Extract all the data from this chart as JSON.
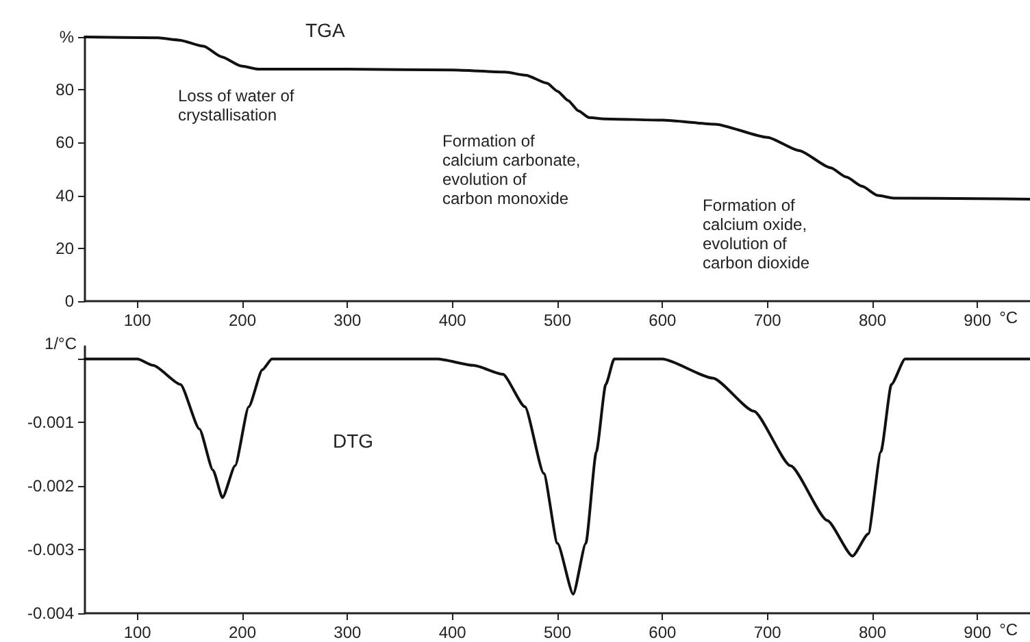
{
  "chart_data": [
    {
      "type": "line",
      "title": "TGA",
      "xlabel": "°C",
      "xlim": [
        50,
        950
      ],
      "xticks": [
        100,
        200,
        300,
        400,
        500,
        600,
        700,
        800,
        900
      ],
      "ylim": [
        0,
        100
      ],
      "yticks": [
        0,
        20,
        40,
        60,
        80,
        {
          "value": 100,
          "label": "%"
        }
      ],
      "grid": false,
      "marker": "none",
      "line_style": "solid",
      "series": [
        {
          "color": "#111111",
          "x": [
            50,
            120,
            140,
            163,
            180,
            199,
            215,
            300,
            400,
            450,
            470,
            490,
            500,
            510,
            520,
            530,
            545,
            600,
            650,
            700,
            730,
            760,
            775,
            790,
            805,
            820,
            900,
            950
          ],
          "values": [
            100,
            99.7,
            98.8,
            96.5,
            92.5,
            89,
            87.8,
            87.8,
            87.5,
            86.7,
            85.5,
            82.5,
            79.5,
            76,
            72,
            69.5,
            69,
            68.5,
            67,
            62,
            57,
            50.5,
            47,
            43.5,
            40,
            39,
            38.8,
            38.6
          ]
        }
      ],
      "annotations": [
        "Loss of water of\ncrystallisation",
        "Formation of\ncalcium carbonate,\nevolution of\ncarbon monoxide",
        "Formation of\ncalcium oxide,\nevolution of\ncarbon dioxide"
      ]
    },
    {
      "type": "line",
      "title": "DTG",
      "xlabel": "°C",
      "ylabel": "1/°C",
      "xlim": [
        50,
        950
      ],
      "xticks": [
        100,
        200,
        300,
        400,
        500,
        600,
        700,
        800,
        900
      ],
      "ylim": [
        -0.004,
        0.0002
      ],
      "yticks": [
        -0.004,
        -0.003,
        -0.002,
        -0.001,
        {
          "value": 0,
          "label": null
        }
      ],
      "grid": false,
      "marker": "none",
      "line_style": "solid",
      "series": [
        {
          "color": "#111111",
          "x": [
            50,
            100,
            115,
            141,
            159,
            172,
            181,
            193,
            206,
            219,
            228,
            300,
            386,
            420,
            448,
            469,
            487,
            500,
            515,
            527,
            537,
            546,
            554,
            600,
            648,
            687,
            722,
            757,
            781,
            796,
            808,
            818,
            831,
            950
          ],
          "values": [
            0,
            0,
            -0.0001,
            -0.0004,
            -0.0011,
            -0.00175,
            -0.00218,
            -0.00168,
            -0.00075,
            -0.00017,
            0,
            0,
            0,
            -0.0001,
            -0.00024,
            -0.00075,
            -0.0018,
            -0.0029,
            -0.0037,
            -0.0029,
            -0.00146,
            -0.0004,
            0,
            0,
            -0.0003,
            -0.00082,
            -0.00168,
            -0.00254,
            -0.0031,
            -0.00275,
            -0.00146,
            -0.0004,
            0,
            0
          ]
        }
      ]
    }
  ]
}
